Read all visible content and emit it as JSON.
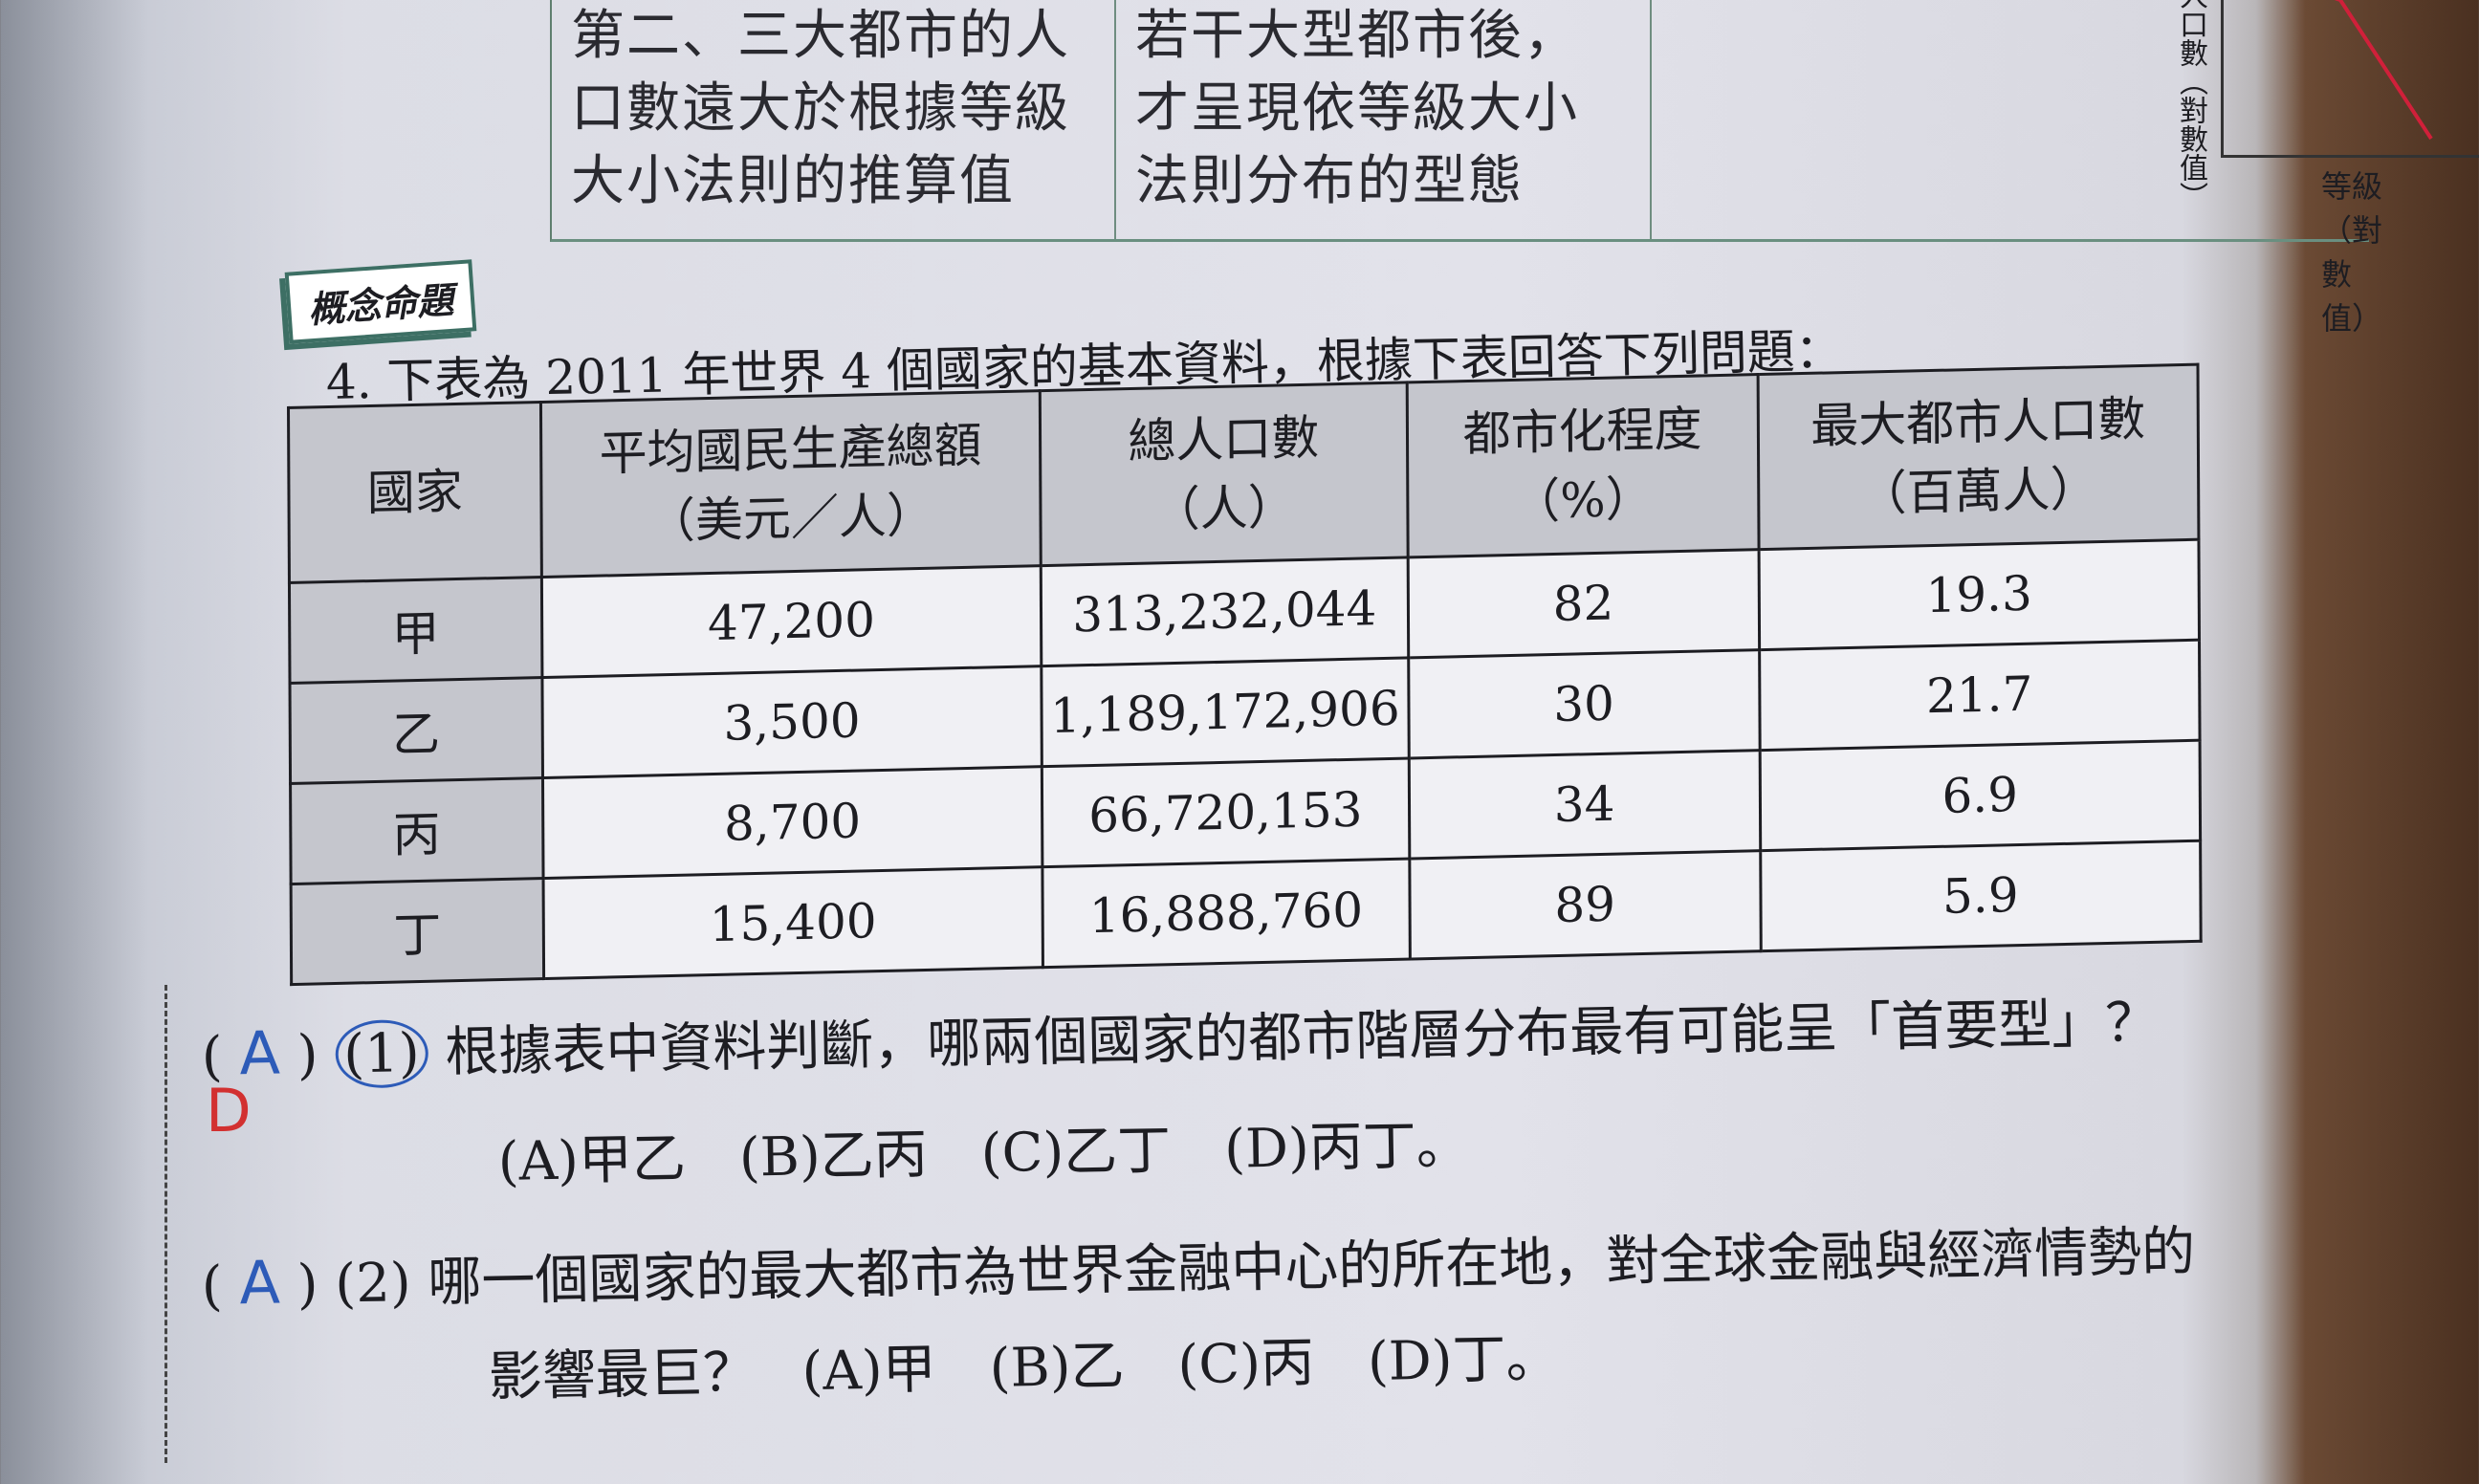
{
  "top_table": {
    "col1": "第二、三大都市的人口數遠大於根據等級大小法則的推算值",
    "col2": "若干大型都市後，才呈現依等級大小法則分布的型態",
    "graph_y_label": "人口數（對數值）",
    "graph_x_label": "等級（對數值）",
    "line_color": "#d0203a"
  },
  "section_tag": "概念命題",
  "question_number": "4.",
  "intro": "下表為 2011 年世界 4 個國家的基本資料，根據下表回答下列問題：",
  "table": {
    "headers": [
      {
        "title": "國家",
        "unit": ""
      },
      {
        "title": "平均國民生產總額",
        "unit": "（美元／人）"
      },
      {
        "title": "總人口數",
        "unit": "（人）"
      },
      {
        "title": "都市化程度",
        "unit": "（%）"
      },
      {
        "title": "最大都市人口數",
        "unit": "（百萬人）"
      }
    ],
    "rows": [
      [
        "甲",
        "47,200",
        "313,232,044",
        "82",
        "19.3"
      ],
      [
        "乙",
        "3,500",
        "1,189,172,906",
        "30",
        "21.7"
      ],
      [
        "丙",
        "8,700",
        "66,720,153",
        "34",
        "6.9"
      ],
      [
        "丁",
        "15,400",
        "16,888,760",
        "89",
        "5.9"
      ]
    ]
  },
  "questions": [
    {
      "answer": "A",
      "correction": "D",
      "number": "(1)",
      "text": "根據表中資料判斷，哪兩個國家的都市階層分布最有可能呈「首要型」？",
      "options": "(A)甲乙　(B)乙丙　(C)乙丁　(D)丙丁。"
    },
    {
      "answer": "A",
      "number": "(2)",
      "text": "哪一個國家的最大都市為世界金融中心的所在地，對全球金融與經濟情勢的",
      "text2": "影響最巨？",
      "options": "(A)甲　(B)乙　(C)丙　(D)丁。"
    }
  ]
}
